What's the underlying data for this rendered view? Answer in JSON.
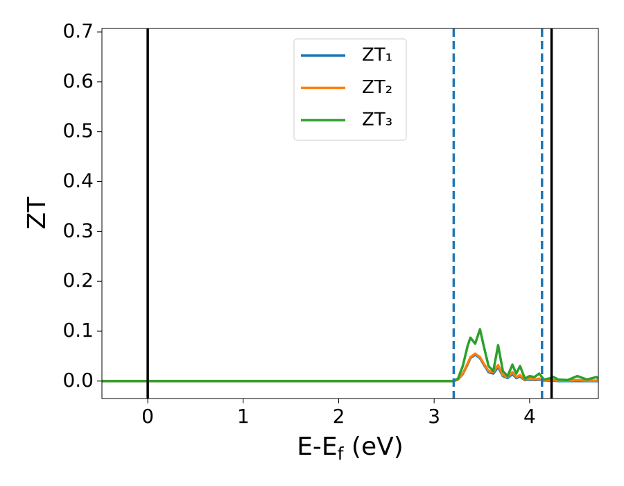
{
  "chart_data": {
    "type": "line",
    "xlabel": [
      "E-E",
      "f",
      " (eV)"
    ],
    "ylabel": "ZT",
    "x": [
      -0.48,
      3.2,
      3.25,
      3.3,
      3.35,
      3.38,
      3.43,
      3.48,
      3.52,
      3.57,
      3.62,
      3.67,
      3.72,
      3.77,
      3.82,
      3.86,
      3.9,
      3.95,
      4.0,
      4.05,
      4.1,
      4.15,
      4.2,
      4.25,
      4.3,
      4.4,
      4.5,
      4.6,
      4.7,
      4.72
    ],
    "series": [
      {
        "name": "ZT₁",
        "color": "#1f77b4",
        "values": [
          0,
          0,
          0.003,
          0.014,
          0.033,
          0.046,
          0.053,
          0.046,
          0.033,
          0.018,
          0.015,
          0.028,
          0.01,
          0.006,
          0.014,
          0.006,
          0.009,
          0.002,
          0.003,
          0.002,
          0.003,
          0.001,
          0.001,
          0.001,
          0,
          0,
          0,
          0,
          0,
          0
        ]
      },
      {
        "name": "ZT₂",
        "color": "#ff7f0e",
        "values": [
          0,
          0,
          0.003,
          0.015,
          0.035,
          0.048,
          0.055,
          0.048,
          0.035,
          0.02,
          0.018,
          0.032,
          0.012,
          0.008,
          0.018,
          0.008,
          0.012,
          0.003,
          0.005,
          0.003,
          0.005,
          0.001,
          0.002,
          0.002,
          0.001,
          0.001,
          0.002,
          0.001,
          0.001,
          0.001
        ]
      },
      {
        "name": "ZT₃",
        "color": "#2ca02c",
        "values": [
          0,
          0,
          0.005,
          0.03,
          0.07,
          0.087,
          0.075,
          0.104,
          0.07,
          0.03,
          0.02,
          0.072,
          0.02,
          0.01,
          0.033,
          0.015,
          0.03,
          0.005,
          0.01,
          0.008,
          0.015,
          0.003,
          0.005,
          0.008,
          0.003,
          0.002,
          0.01,
          0.003,
          0.008,
          0.005
        ]
      }
    ],
    "vlines": [
      {
        "x": 0,
        "color": "#000000",
        "dashed": false
      },
      {
        "x": 4.23,
        "color": "#000000",
        "dashed": false
      },
      {
        "x": 3.205,
        "color": "#1f77b4",
        "dashed": true
      },
      {
        "x": 4.13,
        "color": "#1f77b4",
        "dashed": true
      }
    ],
    "xlim": [
      -0.48,
      4.72
    ],
    "ylim": [
      -0.035,
      0.707
    ],
    "xticks": [
      0,
      1,
      2,
      3,
      4
    ],
    "yticks": [
      {
        "value": 0,
        "label": "0.0"
      },
      0.1,
      0.2,
      0.3,
      0.4,
      0.5,
      0.6,
      0.7
    ],
    "legend": "upper center"
  }
}
